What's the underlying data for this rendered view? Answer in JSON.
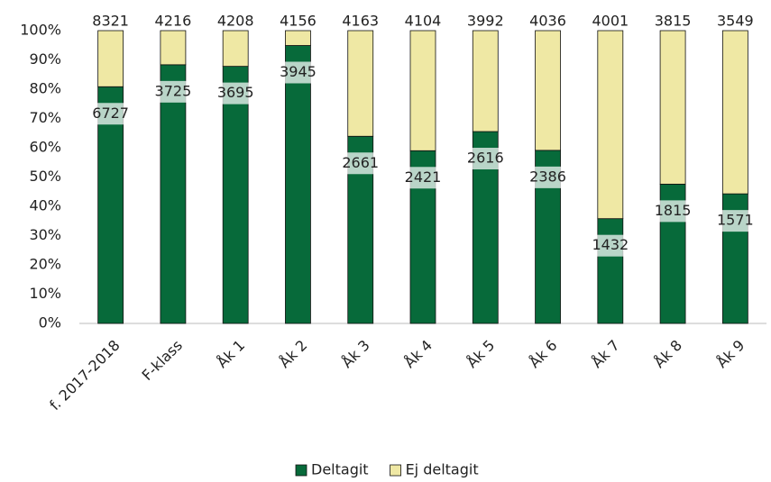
{
  "chart_data": {
    "type": "stacked_bar_100",
    "categories": [
      "f. 2017-2018",
      "F-klass",
      "Åk 1",
      "Åk 2",
      "Åk 3",
      "Åk 4",
      "Åk 5",
      "Åk 6",
      "Åk 7",
      "Åk 8",
      "Åk 9"
    ],
    "series": [
      {
        "name": "Deltagit",
        "color": "#076a3a",
        "values": [
          6727,
          3725,
          3695,
          3945,
          2661,
          2421,
          2616,
          2386,
          1432,
          1815,
          1571
        ]
      },
      {
        "name": "Ej deltagit",
        "color": "#efe8a4",
        "values": [
          1594,
          491,
          513,
          211,
          1502,
          1683,
          1376,
          1650,
          2569,
          2000,
          1978
        ]
      }
    ],
    "totals": [
      8321,
      4216,
      4208,
      4156,
      4163,
      4104,
      3992,
      4036,
      4001,
      3815,
      3549
    ],
    "ylim": [
      0,
      100
    ],
    "yticks": [
      {
        "value": 0,
        "label": "0%"
      },
      {
        "value": 10,
        "label": "10%"
      },
      {
        "value": 20,
        "label": "20%"
      },
      {
        "value": 30,
        "label": "30%"
      },
      {
        "value": 40,
        "label": "40%"
      },
      {
        "value": 50,
        "label": "50%"
      },
      {
        "value": 60,
        "label": "60%"
      },
      {
        "value": 70,
        "label": "70%"
      },
      {
        "value": 80,
        "label": "80%"
      },
      {
        "value": 90,
        "label": "90%"
      },
      {
        "value": 100,
        "label": "100%"
      }
    ],
    "legend": "bottom"
  }
}
